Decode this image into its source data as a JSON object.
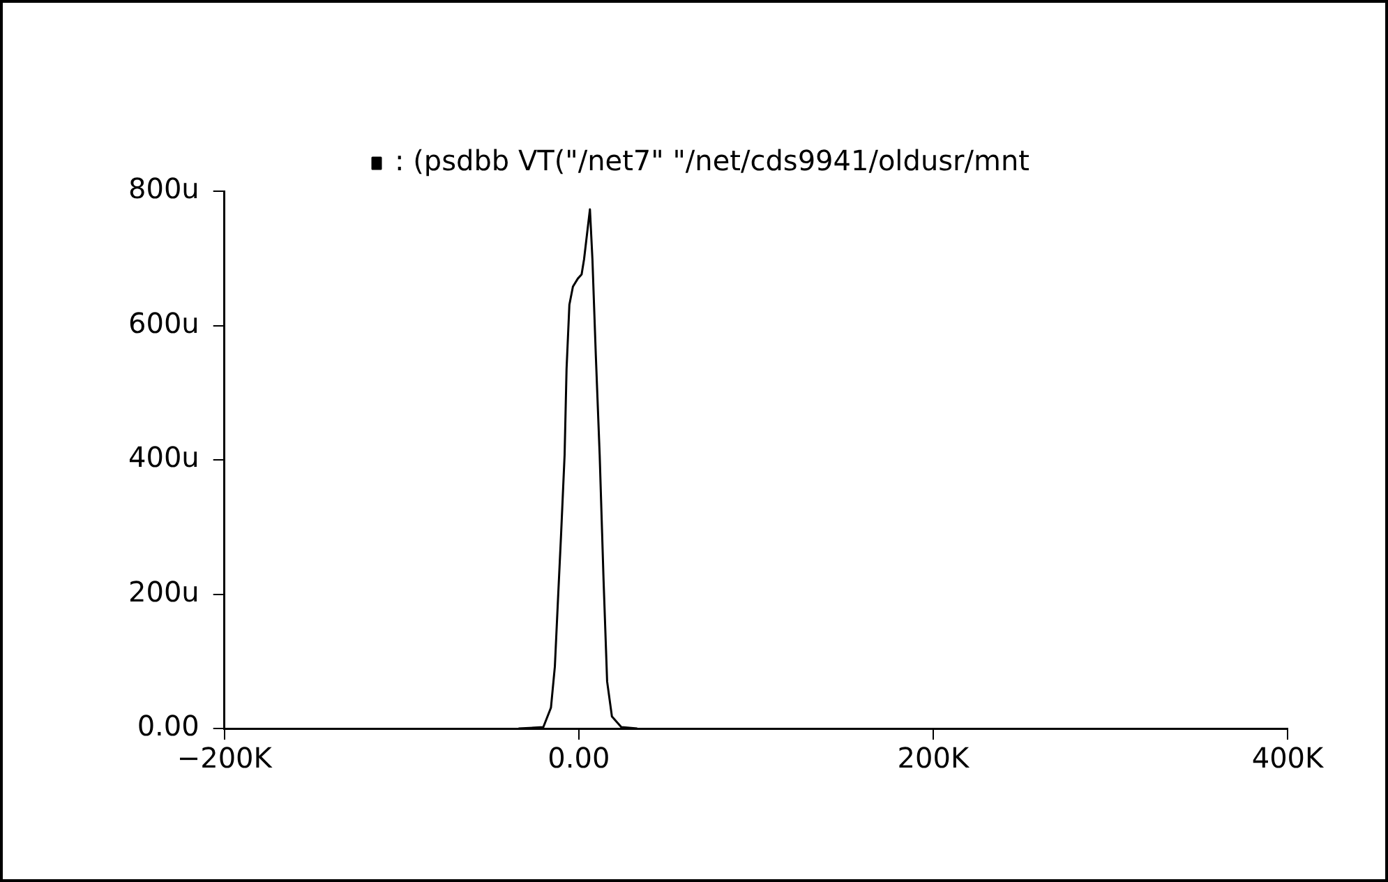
{
  "chart_data": {
    "type": "line",
    "xlim": [
      -200,
      400
    ],
    "xticks": [
      {
        "value": -200,
        "label": "−200K"
      },
      {
        "value": 0,
        "label": "0.00"
      },
      {
        "value": 200,
        "label": "200K"
      },
      {
        "value": 400,
        "label": "400K"
      }
    ],
    "ylim": [
      0,
      800
    ],
    "yticks": [
      {
        "value": 0,
        "label": "0.00"
      },
      {
        "value": 200,
        "label": "200u"
      },
      {
        "value": 400,
        "label": "400u"
      },
      {
        "value": 600,
        "label": "600u"
      },
      {
        "value": 800,
        "label": "800u"
      }
    ],
    "legend": "top",
    "grid": false,
    "marker": "none",
    "line_style": "solid",
    "series": [
      {
        "name": ": (psdbb VT(\"/net7\" \"/net/cds9941/oldusr/mnt",
        "color": "#000000",
        "x": [
          -34,
          -20,
          -15.7,
          -13.5,
          -11.5,
          -10,
          -8,
          -6.9,
          -5.3,
          -3.3,
          -0.5,
          1.6,
          3,
          5,
          6.3,
          7.7,
          9.6,
          11.8,
          14,
          16,
          18.7,
          24,
          33
        ],
        "values": [
          0,
          2,
          31,
          92,
          205,
          288,
          407,
          535,
          631,
          658,
          670,
          676,
          699,
          744,
          773,
          699,
          557,
          407,
          220,
          70,
          18,
          2,
          0
        ]
      }
    ]
  }
}
